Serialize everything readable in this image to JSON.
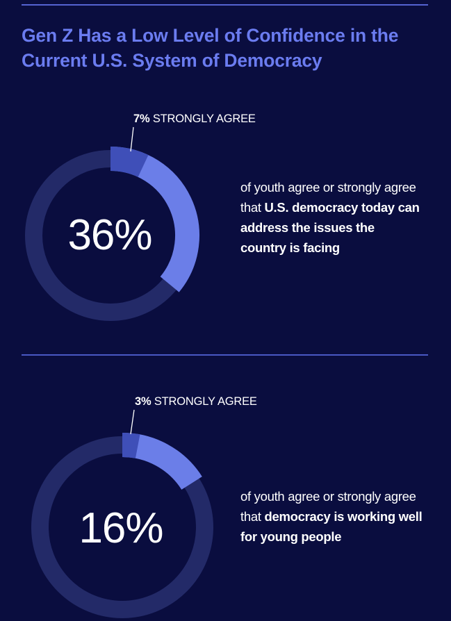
{
  "title": {
    "line1": "Gen Z Has a Low Level of Confidence in the",
    "line2": "Current U.S. System of Democracy"
  },
  "chart_data": [
    {
      "type": "donut",
      "value_percent": 36,
      "strongly_agree_percent": 7,
      "center_label": "36%",
      "callout_pct": "7%",
      "callout_text": " STRONGLY AGREE",
      "description": {
        "plain1": "of youth agree or strongly agree  that ",
        "bold": "U.S. democracy today can address the issues the country is facing",
        "plain2": ""
      }
    },
    {
      "type": "donut",
      "value_percent": 16,
      "strongly_agree_percent": 3,
      "center_label": "16%",
      "callout_pct": "3%",
      "callout_text": " STRONGLY AGREE",
      "description": {
        "plain1": "of youth agree or strongly agree that ",
        "bold": "democracy is working well for young people",
        "plain2": ""
      }
    }
  ],
  "colors": {
    "background": "#0a0d3f",
    "title": "#6b7cf0",
    "track": "#232a68",
    "agree": "#6b7ee8",
    "strongly_agree": "#3f4fb8",
    "rule": "#5563d3"
  }
}
